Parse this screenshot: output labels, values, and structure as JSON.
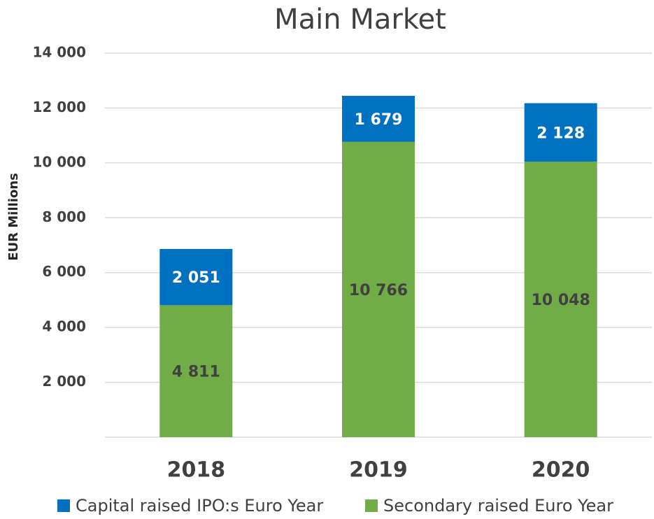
{
  "chart_data": {
    "type": "stacked_bar",
    "title": "Main Market",
    "y_label": "EUR Millions",
    "categories": [
      "2018",
      "2019",
      "2020"
    ],
    "series": [
      {
        "name": "Capital raised IPO:s Euro Year",
        "color": "#0070c0",
        "values": [
          2051,
          1679,
          2128
        ],
        "value_labels": [
          "2 051",
          "1 679",
          "2 128"
        ]
      },
      {
        "name": "Secondary raised Euro Year",
        "color": "#70ad47",
        "values": [
          4811,
          10766,
          10048
        ],
        "value_labels": [
          "4 811",
          "10 766",
          "10 048"
        ]
      }
    ],
    "ylim": [
      0,
      14000
    ],
    "yticks": [
      {
        "value": 2000,
        "label": "2 000"
      },
      {
        "value": 4000,
        "label": "4 000"
      },
      {
        "value": 6000,
        "label": "6 000"
      },
      {
        "value": 8000,
        "label": "8 000"
      },
      {
        "value": 10000,
        "label": "10 000"
      },
      {
        "value": 12000,
        "label": "12 000"
      },
      {
        "value": 14000,
        "label": "14 000"
      }
    ],
    "grid": true,
    "legend": "bottom"
  }
}
